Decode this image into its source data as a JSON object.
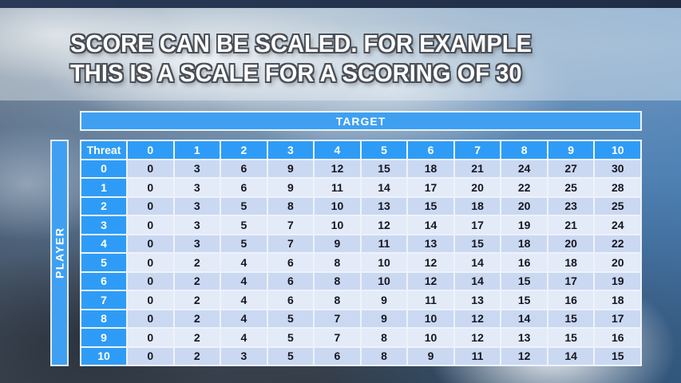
{
  "title": {
    "line1": "SCORE CAN BE SCALED. FOR EXAMPLE",
    "line2": "THIS IS A SCALE FOR A SCORING OF 30"
  },
  "table": {
    "target_label": "TARGET",
    "player_label": "PLAYER",
    "threat_label": "Threat",
    "column_headers": [
      "0",
      "1",
      "2",
      "3",
      "4",
      "5",
      "6",
      "7",
      "8",
      "9",
      "10"
    ],
    "rows": [
      {
        "label": "0",
        "values": [
          0,
          3,
          6,
          9,
          12,
          15,
          18,
          21,
          24,
          27,
          30
        ]
      },
      {
        "label": "1",
        "values": [
          0,
          3,
          6,
          9,
          11,
          14,
          17,
          20,
          22,
          25,
          28
        ]
      },
      {
        "label": "2",
        "values": [
          0,
          3,
          5,
          8,
          10,
          13,
          15,
          18,
          20,
          23,
          25
        ]
      },
      {
        "label": "3",
        "values": [
          0,
          3,
          5,
          7,
          10,
          12,
          14,
          17,
          19,
          21,
          24
        ]
      },
      {
        "label": "4",
        "values": [
          0,
          3,
          5,
          7,
          9,
          11,
          13,
          15,
          18,
          20,
          22
        ]
      },
      {
        "label": "5",
        "values": [
          0,
          2,
          4,
          6,
          8,
          10,
          12,
          14,
          16,
          18,
          20
        ]
      },
      {
        "label": "6",
        "values": [
          0,
          2,
          4,
          6,
          8,
          10,
          12,
          14,
          15,
          17,
          19
        ]
      },
      {
        "label": "7",
        "values": [
          0,
          2,
          4,
          6,
          8,
          9,
          11,
          13,
          15,
          16,
          18
        ]
      },
      {
        "label": "8",
        "values": [
          0,
          2,
          4,
          5,
          7,
          9,
          10,
          12,
          14,
          15,
          17
        ]
      },
      {
        "label": "9",
        "values": [
          0,
          2,
          4,
          5,
          7,
          8,
          10,
          12,
          13,
          15,
          16
        ]
      },
      {
        "label": "10",
        "values": [
          0,
          2,
          3,
          5,
          6,
          8,
          9,
          11,
          12,
          14,
          15
        ]
      }
    ]
  },
  "colors": {
    "accent_blue": "#2E9CF6",
    "target_bar_blue": "#3FA0F2",
    "row_band_dark": "#CAD8F2",
    "row_band_light": "#E3EAF8",
    "cell_text": "#16161F",
    "title_text": "#FFFFFF",
    "title_outline": "#4A4F57"
  }
}
